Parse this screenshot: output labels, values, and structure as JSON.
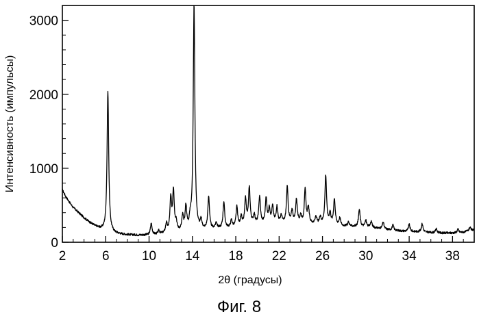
{
  "figure": {
    "caption": "Фиг. 8"
  },
  "chart_data": {
    "type": "line",
    "title": "",
    "xlabel": "2θ (градусы)",
    "ylabel": "Интенсивность (импульсы)",
    "xlim": [
      2,
      40
    ],
    "ylim": [
      0,
      3200
    ],
    "xticks": [
      2,
      6,
      10,
      14,
      18,
      22,
      26,
      30,
      34,
      38
    ],
    "xtick_labels": [
      "2",
      "6",
      "10",
      "14",
      "18",
      "22",
      "26",
      "30",
      "34",
      "38"
    ],
    "yticks": [
      0,
      1000,
      2000,
      3000
    ],
    "ytick_labels": [
      "0",
      "1000",
      "2000",
      "3000"
    ],
    "grid": false,
    "legend": "none",
    "line_color": "#000000",
    "series": [
      {
        "baseline": [
          [
            2.0,
            710
          ],
          [
            2.3,
            620
          ],
          [
            2.7,
            530
          ],
          [
            3.0,
            470
          ],
          [
            3.5,
            400
          ],
          [
            4.0,
            330
          ],
          [
            4.5,
            270
          ],
          [
            5.0,
            220
          ],
          [
            5.5,
            180
          ],
          [
            6.0,
            150
          ],
          [
            7.0,
            115
          ],
          [
            8.0,
            100
          ],
          [
            9.0,
            95
          ],
          [
            10.0,
            95
          ],
          [
            11.0,
            105
          ],
          [
            12.0,
            125
          ],
          [
            13.0,
            140
          ],
          [
            14.0,
            150
          ],
          [
            15.0,
            160
          ],
          [
            16.0,
            175
          ],
          [
            17.0,
            185
          ],
          [
            18.0,
            200
          ],
          [
            19.0,
            230
          ],
          [
            20.0,
            240
          ],
          [
            21.0,
            250
          ],
          [
            22.0,
            250
          ],
          [
            23.0,
            250
          ],
          [
            24.0,
            245
          ],
          [
            25.0,
            245
          ],
          [
            26.0,
            240
          ],
          [
            27.0,
            230
          ],
          [
            28.0,
            215
          ],
          [
            29.0,
            210
          ],
          [
            30.0,
            205
          ],
          [
            31.0,
            190
          ],
          [
            32.0,
            170
          ],
          [
            33.0,
            155
          ],
          [
            34.0,
            145
          ],
          [
            35.0,
            140
          ],
          [
            36.0,
            130
          ],
          [
            37.0,
            125
          ],
          [
            38.0,
            125
          ],
          [
            39.0,
            135
          ],
          [
            40.0,
            170
          ]
        ],
        "peaks": [
          {
            "x": 6.2,
            "y": 2040
          },
          {
            "x": 10.2,
            "y": 250
          },
          {
            "x": 10.9,
            "y": 150
          },
          {
            "x": 11.6,
            "y": 240
          },
          {
            "x": 12.0,
            "y": 570
          },
          {
            "x": 12.25,
            "y": 680
          },
          {
            "x": 12.5,
            "y": 250
          },
          {
            "x": 13.1,
            "y": 330
          },
          {
            "x": 13.4,
            "y": 460
          },
          {
            "x": 13.8,
            "y": 280
          },
          {
            "x": 14.15,
            "y": 3200
          },
          {
            "x": 14.8,
            "y": 270
          },
          {
            "x": 15.5,
            "y": 610
          },
          {
            "x": 16.2,
            "y": 260
          },
          {
            "x": 16.9,
            "y": 540
          },
          {
            "x": 17.6,
            "y": 290
          },
          {
            "x": 18.1,
            "y": 470
          },
          {
            "x": 18.5,
            "y": 330
          },
          {
            "x": 18.9,
            "y": 570
          },
          {
            "x": 19.25,
            "y": 730
          },
          {
            "x": 19.7,
            "y": 360
          },
          {
            "x": 20.2,
            "y": 610
          },
          {
            "x": 20.8,
            "y": 580
          },
          {
            "x": 21.1,
            "y": 440
          },
          {
            "x": 21.4,
            "y": 470
          },
          {
            "x": 21.8,
            "y": 470
          },
          {
            "x": 22.2,
            "y": 350
          },
          {
            "x": 22.75,
            "y": 740
          },
          {
            "x": 23.2,
            "y": 420
          },
          {
            "x": 23.6,
            "y": 570
          },
          {
            "x": 24.0,
            "y": 350
          },
          {
            "x": 24.4,
            "y": 700
          },
          {
            "x": 24.7,
            "y": 460
          },
          {
            "x": 25.4,
            "y": 340
          },
          {
            "x": 25.8,
            "y": 330
          },
          {
            "x": 26.3,
            "y": 900
          },
          {
            "x": 26.7,
            "y": 380
          },
          {
            "x": 27.1,
            "y": 580
          },
          {
            "x": 27.6,
            "y": 320
          },
          {
            "x": 28.4,
            "y": 270
          },
          {
            "x": 29.4,
            "y": 440
          },
          {
            "x": 30.0,
            "y": 290
          },
          {
            "x": 30.5,
            "y": 280
          },
          {
            "x": 31.6,
            "y": 270
          },
          {
            "x": 32.5,
            "y": 230
          },
          {
            "x": 34.0,
            "y": 240
          },
          {
            "x": 35.2,
            "y": 250
          },
          {
            "x": 36.5,
            "y": 180
          },
          {
            "x": 38.5,
            "y": 175
          },
          {
            "x": 39.6,
            "y": 200
          }
        ]
      }
    ]
  }
}
